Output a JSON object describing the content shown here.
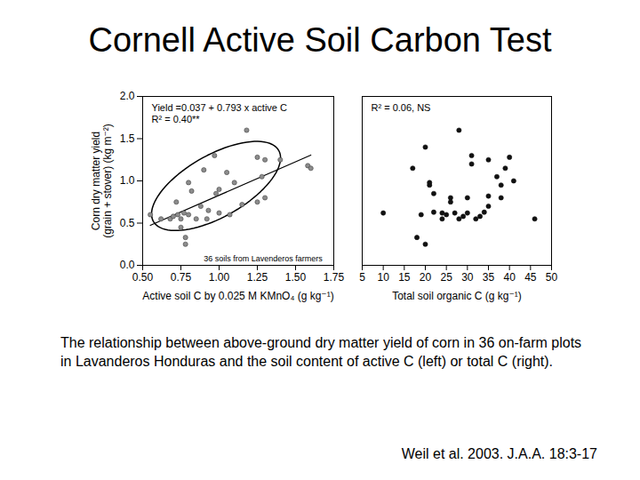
{
  "slide": {
    "title": "Cornell Active Soil Carbon Test",
    "caption": "The relationship between above-ground dry matter yield of corn in 36 on-farm plots in Lavanderos Honduras and the soil content of active C (left) or total C (right).",
    "source": "Weil et al. 2003. J.A.A. 18:3-17"
  },
  "chart_data": [
    {
      "type": "scatter",
      "x_label": "Active soil C by 0.025 M KMnO₄ (g kg⁻¹)",
      "y_label": "Corn dry matter yield\n(grain + stover) (kg m⁻²)",
      "annotations": [
        "Yield =0.037 + 0.793 x active C",
        "R² = 0.40**"
      ],
      "note": "36 soils from Lavenderos farmers",
      "color": "#8c8c8c",
      "marker": "circle",
      "x": [
        0.55,
        0.62,
        0.68,
        0.7,
        0.72,
        0.73,
        0.75,
        0.75,
        0.77,
        0.78,
        0.78,
        0.8,
        0.8,
        0.82,
        0.85,
        0.88,
        0.9,
        0.92,
        0.93,
        0.97,
        0.98,
        1.0,
        1.0,
        1.05,
        1.07,
        1.1,
        1.15,
        1.18,
        1.25,
        1.25,
        1.28,
        1.3,
        1.3,
        1.4,
        1.58,
        1.6
      ],
      "values": [
        0.6,
        0.55,
        0.55,
        0.58,
        0.75,
        0.6,
        0.55,
        0.45,
        0.62,
        0.33,
        0.25,
        0.98,
        0.6,
        0.88,
        0.55,
        0.7,
        1.13,
        0.55,
        0.65,
        1.3,
        0.85,
        0.9,
        0.62,
        1.1,
        0.6,
        0.98,
        0.72,
        1.6,
        1.28,
        0.75,
        1.05,
        1.25,
        0.8,
        1.25,
        1.18,
        1.15
      ],
      "fit": {
        "intercept": 0.037,
        "slope": 0.793,
        "x_range": [
          0.55,
          1.6
        ]
      },
      "ellipse": {
        "center": [
          0.98,
          0.94
        ],
        "axis1": [
          0.41,
          0.42
        ],
        "axis2": [
          0.1,
          -0.32
        ]
      },
      "xlim": [
        0.5,
        1.75
      ],
      "xticks": [
        {
          "value": 0.5,
          "label": "0.50"
        },
        0.75,
        {
          "value": 1,
          "label": "1.00"
        },
        1.25,
        {
          "value": 1.5,
          "label": "1.50"
        },
        1.75
      ],
      "ylim": [
        0,
        2
      ],
      "yticks": [
        {
          "value": 0,
          "label": "0.0"
        },
        0.5,
        {
          "value": 1,
          "label": "1.0"
        },
        1.5,
        {
          "value": 2,
          "label": "2.0"
        }
      ],
      "grid": false
    },
    {
      "type": "scatter",
      "x_label": "Total soil organic C (g kg⁻¹)",
      "annotations": [
        "R² = 0.06, NS"
      ],
      "color": "#111111",
      "marker": "circle",
      "x": [
        10,
        17,
        18,
        19,
        20,
        20,
        21,
        21,
        22,
        22,
        24,
        24,
        25,
        26,
        26,
        27,
        28,
        28,
        29,
        30,
        30,
        31,
        31,
        32,
        33,
        34,
        35,
        35,
        35,
        37,
        38,
        38,
        39,
        40,
        41,
        46
      ],
      "values": [
        0.62,
        1.15,
        0.33,
        0.6,
        0.25,
        1.4,
        0.95,
        0.98,
        0.63,
        0.85,
        0.55,
        0.62,
        0.6,
        0.75,
        0.8,
        0.62,
        1.6,
        0.55,
        0.58,
        0.8,
        0.62,
        1.3,
        1.2,
        0.55,
        0.58,
        0.63,
        1.25,
        0.82,
        0.7,
        1.05,
        0.95,
        0.8,
        1.15,
        1.28,
        1.0,
        0.55
      ],
      "xlim": [
        5,
        50
      ],
      "xticks": [
        5,
        10,
        15,
        20,
        25,
        30,
        35,
        40,
        45,
        50
      ],
      "ylim": [
        0,
        2
      ],
      "tick_labels": "x",
      "grid": false
    }
  ]
}
